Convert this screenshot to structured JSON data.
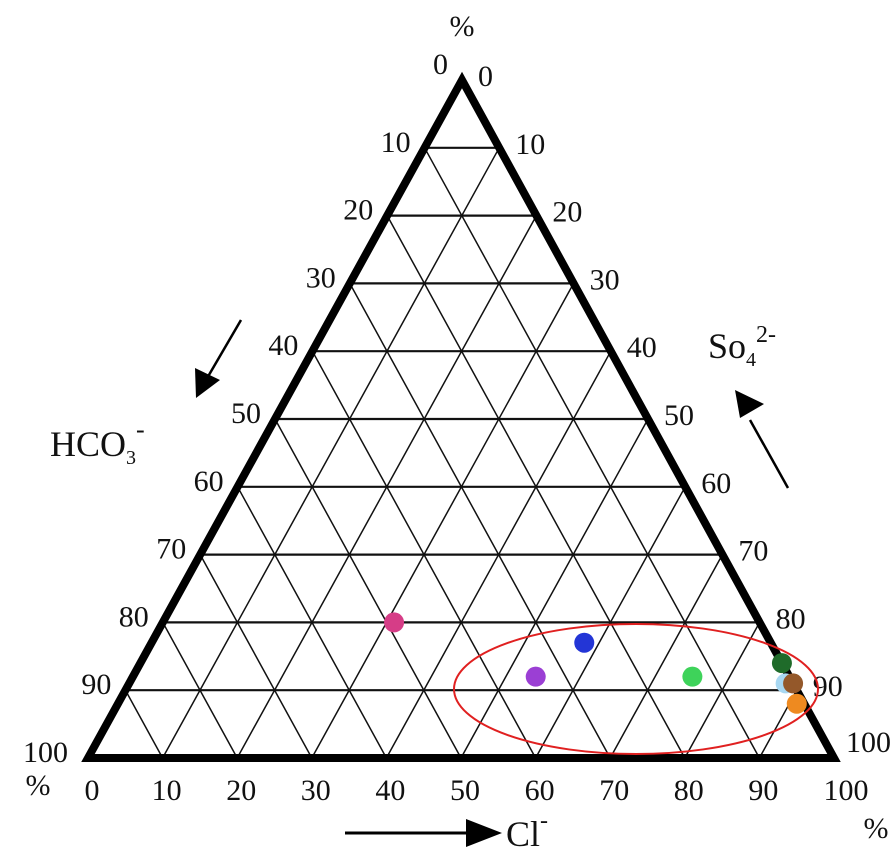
{
  "chart_data": {
    "type": "scatter",
    "subtype": "ternary",
    "axes": {
      "left": {
        "label": "HCO3-",
        "label_main": "HCO",
        "label_sub": "3",
        "label_sup": "-",
        "unit": "%",
        "ticks": [
          "0",
          "10",
          "20",
          "30",
          "40",
          "50",
          "60",
          "70",
          "80",
          "90",
          "100"
        ]
      },
      "right": {
        "label": "So42-",
        "label_main": "So",
        "label_sub": "4",
        "label_sup": "2-",
        "unit": "%",
        "ticks": [
          "100",
          "90",
          "80",
          "70",
          "60",
          "50",
          "40",
          "30",
          "20",
          "10",
          "0"
        ]
      },
      "bottom": {
        "label": "Cl-",
        "label_main": "Cl",
        "label_sup": "-",
        "unit": "%",
        "ticks": [
          "0",
          "10",
          "20",
          "30",
          "40",
          "50",
          "60",
          "70",
          "80",
          "90",
          "100"
        ]
      }
    },
    "grid": true,
    "grid_step": 10,
    "points": [
      {
        "cl": 31,
        "so4": 20,
        "color": "#d63d87"
      },
      {
        "cl": 54,
        "so4": 12,
        "color": "#9b3fd4"
      },
      {
        "cl": 58,
        "so4": 17,
        "color": "#2335d6"
      },
      {
        "cl": 75,
        "so4": 12,
        "color": "#3ed35a"
      },
      {
        "cl": 86,
        "so4": 14,
        "color": "#1f6b2a"
      },
      {
        "cl": 88,
        "so4": 11,
        "color": "#a8d8f2"
      },
      {
        "cl": 89,
        "so4": 11,
        "color": "#94582a"
      },
      {
        "cl": 91,
        "so4": 8,
        "color": "#ee8a20"
      }
    ],
    "annotations": [
      {
        "type": "ellipse",
        "color": "#e02020",
        "encloses": "cluster of high-Cl samples"
      }
    ]
  }
}
